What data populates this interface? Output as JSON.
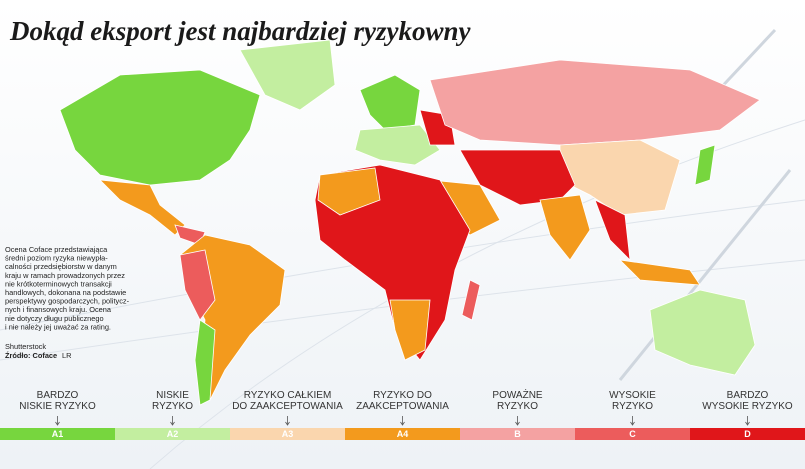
{
  "header": {
    "title": "Dokąd eksport jest najbardziej ryzykowny"
  },
  "description": {
    "lines": [
      "Ocena Coface przedstawiająca",
      "średni poziom ryzyka niewypła-",
      "calności przedsiębiorstw w danym",
      "kraju w ramach prowadzonych przez",
      "nie krótkoterminowych transakcji",
      "handlowych, dokonana na podstawie",
      "perspektywy gospodarczych, politycz-",
      "nych i finansowych kraju. Ocena",
      "nie dotyczy długu publicznego",
      "i nie należy jej uważać za rating."
    ],
    "photo": "Shutterstock",
    "source": "Źródło: Coface",
    "author": "LR"
  },
  "legend": {
    "items": [
      {
        "label": [
          "BARDZO",
          "NISKIE RYZYKO"
        ],
        "code": "A1",
        "color": "#77d63e"
      },
      {
        "label": [
          "NISKIE",
          "RYZYKO"
        ],
        "code": "A2",
        "color": "#c3eea0"
      },
      {
        "label": [
          "RYZYKO CAŁKIEM",
          "DO ZAAKCEPTOWANIA"
        ],
        "code": "A3",
        "color": "#fad6ae"
      },
      {
        "label": [
          "RYZYKO DO",
          "ZAAKCEPTOWANIA"
        ],
        "code": "A4",
        "color": "#f39a1d"
      },
      {
        "label": [
          "POWAŻNE",
          "RYZYKO"
        ],
        "code": "B",
        "color": "#f4a2a2"
      },
      {
        "label": [
          "WYSOKIE",
          "RYZYKO"
        ],
        "code": "C",
        "color": "#ec5c5c"
      },
      {
        "label": [
          "BARDZO",
          "WYSOKIE RYZYKO"
        ],
        "code": "D",
        "color": "#e0161a"
      }
    ]
  }
}
